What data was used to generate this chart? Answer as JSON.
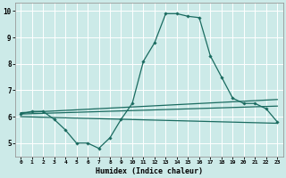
{
  "xlabel": "Humidex (Indice chaleur)",
  "bg_color": "#cceae8",
  "line_color": "#1a6b60",
  "grid_color": "#ffffff",
  "xlim": [
    -0.5,
    23.5
  ],
  "ylim": [
    4.5,
    10.3
  ],
  "yticks": [
    5,
    6,
    7,
    8,
    9,
    10
  ],
  "xtick_labels": [
    "0",
    "1",
    "2",
    "3",
    "4",
    "5",
    "6",
    "7",
    "8",
    "9",
    "10",
    "11",
    "12",
    "13",
    "14",
    "15",
    "16",
    "17",
    "18",
    "19",
    "20",
    "21",
    "22",
    "23"
  ],
  "xtick_positions": [
    0,
    1,
    2,
    3,
    4,
    5,
    6,
    7,
    8,
    9,
    10,
    11,
    12,
    13,
    14,
    15,
    16,
    17,
    18,
    19,
    20,
    21,
    22,
    23
  ],
  "series": [
    {
      "x": [
        0,
        1,
        2,
        3,
        4,
        5,
        6,
        7,
        8,
        9,
        10,
        11,
        12,
        13,
        14,
        15,
        16,
        17,
        18,
        19,
        20,
        21,
        22,
        23
      ],
      "y": [
        6.1,
        6.2,
        6.2,
        5.9,
        5.5,
        5.0,
        5.0,
        4.8,
        5.2,
        5.9,
        6.5,
        8.1,
        8.8,
        9.9,
        9.9,
        9.8,
        9.75,
        8.3,
        7.5,
        6.7,
        6.5,
        6.5,
        6.3,
        5.8
      ],
      "marker": "D",
      "markersize": 1.8,
      "linewidth": 0.9
    },
    {
      "x": [
        0,
        23
      ],
      "y": [
        6.15,
        6.65
      ],
      "marker": null,
      "linewidth": 0.9
    },
    {
      "x": [
        0,
        23
      ],
      "y": [
        6.1,
        6.4
      ],
      "marker": null,
      "linewidth": 0.9
    },
    {
      "x": [
        0,
        23
      ],
      "y": [
        6.0,
        5.75
      ],
      "marker": null,
      "linewidth": 0.9
    }
  ]
}
